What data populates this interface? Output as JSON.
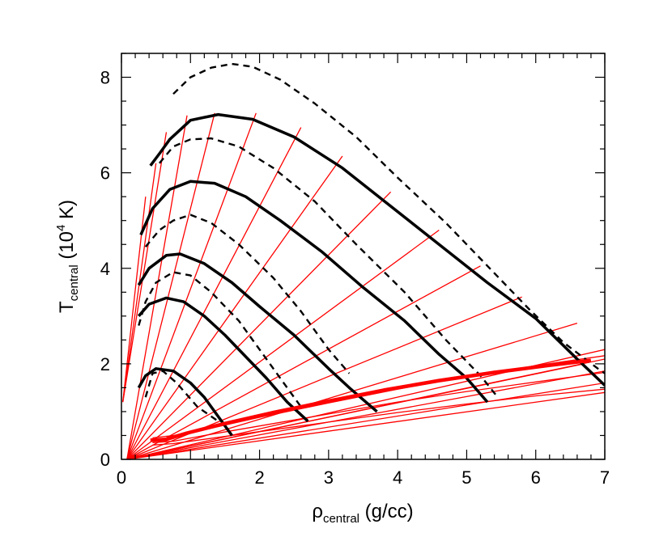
{
  "chart_data": {
    "type": "line",
    "xlabel": {
      "main": "ρ",
      "sub": "central",
      "rest": " (g/cc)"
    },
    "ylabel": {
      "main": "T",
      "sub": "central",
      "rest_open": " (10",
      "sup": "4",
      "rest_close": " K)"
    },
    "xlim": [
      0,
      7
    ],
    "ylim": [
      0,
      8.5
    ],
    "xticks": [
      0,
      1,
      2,
      3,
      4,
      5,
      6,
      7
    ],
    "xtick_labels": [
      "0",
      "1",
      "2",
      "3",
      "4",
      "5",
      "6",
      "7"
    ],
    "yticks": [
      0,
      2,
      4,
      6,
      8
    ],
    "ytick_labels": [
      "0",
      "2",
      "4",
      "6",
      "8"
    ],
    "grid": false,
    "series": [
      {
        "style": "solid-thick",
        "color": "#000000",
        "x": [
          0.25,
          0.35,
          0.5,
          0.75,
          1.0,
          1.2,
          1.6
        ],
        "y": [
          1.5,
          1.75,
          1.9,
          1.85,
          1.6,
          1.3,
          0.5
        ]
      },
      {
        "style": "solid-thick",
        "color": "#000000",
        "x": [
          0.25,
          0.4,
          0.65,
          0.9,
          1.2,
          1.5,
          1.8,
          2.1,
          2.4,
          2.7
        ],
        "y": [
          3.0,
          3.25,
          3.38,
          3.3,
          3.0,
          2.6,
          2.15,
          1.7,
          1.2,
          0.8
        ]
      },
      {
        "style": "solid-thick",
        "color": "#000000",
        "x": [
          0.25,
          0.4,
          0.65,
          0.85,
          1.2,
          1.6,
          2.0,
          2.5,
          3.0,
          3.3,
          3.7
        ],
        "y": [
          3.65,
          4.0,
          4.27,
          4.3,
          4.1,
          3.7,
          3.2,
          2.6,
          1.9,
          1.5,
          1.0
        ]
      },
      {
        "style": "solid-thick",
        "color": "#000000",
        "x": [
          0.28,
          0.45,
          0.7,
          1.0,
          1.35,
          1.8,
          2.3,
          2.9,
          3.5,
          4.1,
          4.6,
          5.0,
          5.3
        ],
        "y": [
          4.7,
          5.25,
          5.65,
          5.82,
          5.78,
          5.5,
          5.0,
          4.35,
          3.6,
          2.9,
          2.2,
          1.7,
          1.2
        ]
      },
      {
        "style": "solid-thick",
        "color": "#000000",
        "x": [
          0.42,
          0.55,
          0.7,
          1.0,
          1.4,
          1.9,
          2.5,
          3.2,
          3.9,
          4.6,
          5.3,
          6.0,
          6.6,
          7.0
        ],
        "y": [
          6.15,
          6.4,
          6.7,
          7.1,
          7.22,
          7.12,
          6.75,
          6.1,
          5.3,
          4.5,
          3.7,
          2.95,
          2.1,
          1.55
        ]
      },
      {
        "style": "dashed",
        "color": "#000000",
        "x": [
          0.35,
          0.45,
          0.6,
          0.8,
          1.1,
          1.4
        ],
        "y": [
          1.3,
          1.8,
          1.85,
          1.6,
          1.1,
          0.8
        ]
      },
      {
        "style": "dashed",
        "color": "#000000",
        "x": [
          0.25,
          0.35,
          0.5,
          0.75,
          1.0,
          1.3,
          1.7,
          2.1,
          2.6
        ],
        "y": [
          2.8,
          3.3,
          3.7,
          3.92,
          3.85,
          3.5,
          2.9,
          2.1,
          1.1
        ]
      },
      {
        "style": "dashed",
        "color": "#000000",
        "x": [
          0.35,
          0.55,
          0.75,
          1.0,
          1.3,
          1.7,
          2.2,
          2.6,
          3.0,
          3.3
        ],
        "y": [
          4.45,
          4.8,
          5.0,
          5.12,
          4.95,
          4.5,
          3.8,
          3.1,
          2.3,
          1.8
        ]
      },
      {
        "style": "dashed",
        "color": "#000000",
        "x": [
          0.55,
          0.75,
          1.0,
          1.3,
          1.7,
          2.2,
          2.8,
          3.4,
          4.1,
          4.7,
          5.2,
          5.45
        ],
        "y": [
          6.2,
          6.55,
          6.7,
          6.72,
          6.55,
          6.1,
          5.4,
          4.5,
          3.5,
          2.5,
          1.75,
          1.3
        ]
      },
      {
        "style": "dashed",
        "color": "#000000",
        "x": [
          0.75,
          1.0,
          1.3,
          1.6,
          1.9,
          2.3,
          2.8,
          3.4,
          4.0,
          4.7,
          5.3,
          5.9,
          6.4,
          6.9,
          7.0
        ],
        "y": [
          7.65,
          8.0,
          8.2,
          8.28,
          8.22,
          7.95,
          7.45,
          6.75,
          5.9,
          4.95,
          4.05,
          3.15,
          2.45,
          1.9,
          1.8
        ]
      },
      {
        "style": "solid-thick",
        "color": "#ff0000",
        "x": [
          0.42,
          0.65,
          0.95,
          1.5,
          2.2,
          3.0,
          3.8,
          4.6,
          5.4,
          6.2,
          6.8
        ],
        "y": [
          0.4,
          0.42,
          0.55,
          0.75,
          0.98,
          1.22,
          1.45,
          1.65,
          1.82,
          1.97,
          2.07
        ]
      }
    ],
    "fan_lines": {
      "color": "#ff0000",
      "origin": [
        0.08,
        0.0
      ],
      "ends": [
        [
          0.95,
          7.2
        ],
        [
          1.35,
          7.25
        ],
        [
          1.95,
          7.25
        ],
        [
          2.6,
          6.95
        ],
        [
          3.2,
          6.35
        ],
        [
          3.9,
          5.6
        ],
        [
          4.6,
          4.8
        ],
        [
          5.2,
          4.05
        ],
        [
          5.8,
          3.4
        ],
        [
          6.6,
          2.85
        ],
        [
          7.0,
          2.3
        ],
        [
          7.0,
          2.1
        ],
        [
          6.7,
          2.0
        ],
        [
          7.0,
          1.85
        ],
        [
          7.0,
          1.6
        ],
        [
          7.0,
          1.4
        ]
      ]
    },
    "left_fan": {
      "color": "#ff0000",
      "origin": [
        0.02,
        1.2
      ],
      "ends": [
        [
          0.35,
          5.5
        ],
        [
          0.5,
          6.2
        ],
        [
          0.65,
          6.85
        ]
      ]
    },
    "bottom_bundle": {
      "color": "#ff0000",
      "lines": [
        {
          "x": [
            0.45,
            0.75,
            1.2,
            2.0,
            3.0,
            4.0,
            5.0,
            6.0,
            7.0
          ],
          "y": [
            0.3,
            0.33,
            0.42,
            0.58,
            0.78,
            0.98,
            1.16,
            1.33,
            1.47
          ]
        },
        {
          "x": [
            0.45,
            0.75,
            1.2,
            2.0,
            3.0,
            4.0,
            5.0,
            6.0,
            7.0
          ],
          "y": [
            0.35,
            0.38,
            0.5,
            0.7,
            0.95,
            1.2,
            1.42,
            1.62,
            1.82
          ]
        },
        {
          "x": [
            0.45,
            0.75,
            1.2,
            2.0,
            3.0,
            4.0,
            5.0,
            6.0,
            7.0
          ],
          "y": [
            0.45,
            0.5,
            0.62,
            0.88,
            1.18,
            1.47,
            1.73,
            1.96,
            2.17
          ]
        }
      ]
    }
  }
}
